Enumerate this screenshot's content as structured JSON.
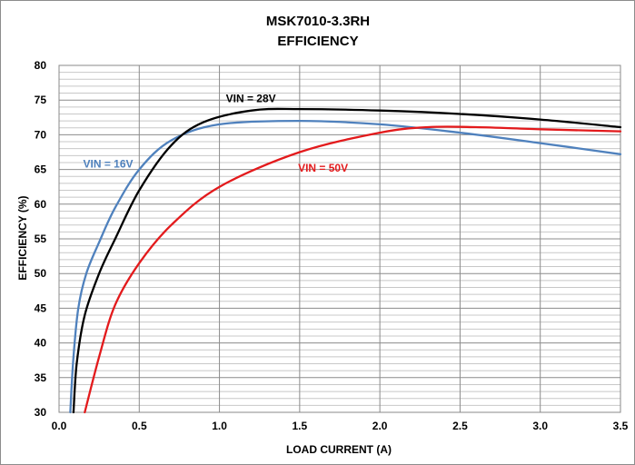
{
  "chart_data": {
    "type": "line",
    "title": "MSK7010-3.3RH",
    "subtitle": "EFFICIENCY",
    "xlabel": "LOAD CURRENT (A)",
    "ylabel": "EFFICIENCY (%)",
    "xlim": [
      0.0,
      3.5
    ],
    "ylim": [
      30,
      80
    ],
    "x_ticks": [
      "0.0",
      "0.5",
      "1.0",
      "1.5",
      "2.0",
      "2.5",
      "3.0",
      "3.5"
    ],
    "y_ticks": [
      "30",
      "35",
      "40",
      "45",
      "50",
      "55",
      "60",
      "65",
      "70",
      "75",
      "80"
    ],
    "grid": true,
    "legend": "none",
    "series": [
      {
        "name": "VIN = 16V",
        "color": "#4f81bd",
        "points": [
          [
            0.07,
            30
          ],
          [
            0.09,
            38
          ],
          [
            0.12,
            45
          ],
          [
            0.17,
            50
          ],
          [
            0.25,
            54.5
          ],
          [
            0.35,
            59.5
          ],
          [
            0.5,
            65
          ],
          [
            0.7,
            69.2
          ],
          [
            1.0,
            71.5
          ],
          [
            1.5,
            72
          ],
          [
            2.0,
            71.5
          ],
          [
            2.5,
            70.3
          ],
          [
            3.0,
            68.8
          ],
          [
            3.5,
            67.2
          ]
        ]
      },
      {
        "name": "VIN = 28V",
        "color": "#000000",
        "points": [
          [
            0.09,
            30
          ],
          [
            0.11,
            37
          ],
          [
            0.16,
            44
          ],
          [
            0.25,
            50
          ],
          [
            0.35,
            55
          ],
          [
            0.5,
            62
          ],
          [
            0.7,
            68.5
          ],
          [
            0.9,
            71.8
          ],
          [
            1.2,
            73.5
          ],
          [
            1.5,
            73.7
          ],
          [
            2.0,
            73.5
          ],
          [
            2.5,
            73
          ],
          [
            3.0,
            72.2
          ],
          [
            3.5,
            71.1
          ]
        ]
      },
      {
        "name": "VIN = 50V",
        "color": "#e31a1c",
        "points": [
          [
            0.16,
            30
          ],
          [
            0.25,
            38
          ],
          [
            0.35,
            45.5
          ],
          [
            0.5,
            51.5
          ],
          [
            0.7,
            57
          ],
          [
            1.0,
            62.5
          ],
          [
            1.5,
            67.5
          ],
          [
            2.0,
            70.3
          ],
          [
            2.3,
            71.1
          ],
          [
            2.6,
            71.1
          ],
          [
            3.0,
            70.8
          ],
          [
            3.5,
            70.5
          ]
        ]
      }
    ],
    "annotations": [
      {
        "text": "VIN = 16V",
        "series": 0,
        "x": 0.15,
        "y": 65.3
      },
      {
        "text": "VIN = 28V",
        "series": 1,
        "x": 1.04,
        "y": 74.7
      },
      {
        "text": "VIN = 50V",
        "series": 2,
        "x": 1.49,
        "y": 64.7
      }
    ]
  }
}
